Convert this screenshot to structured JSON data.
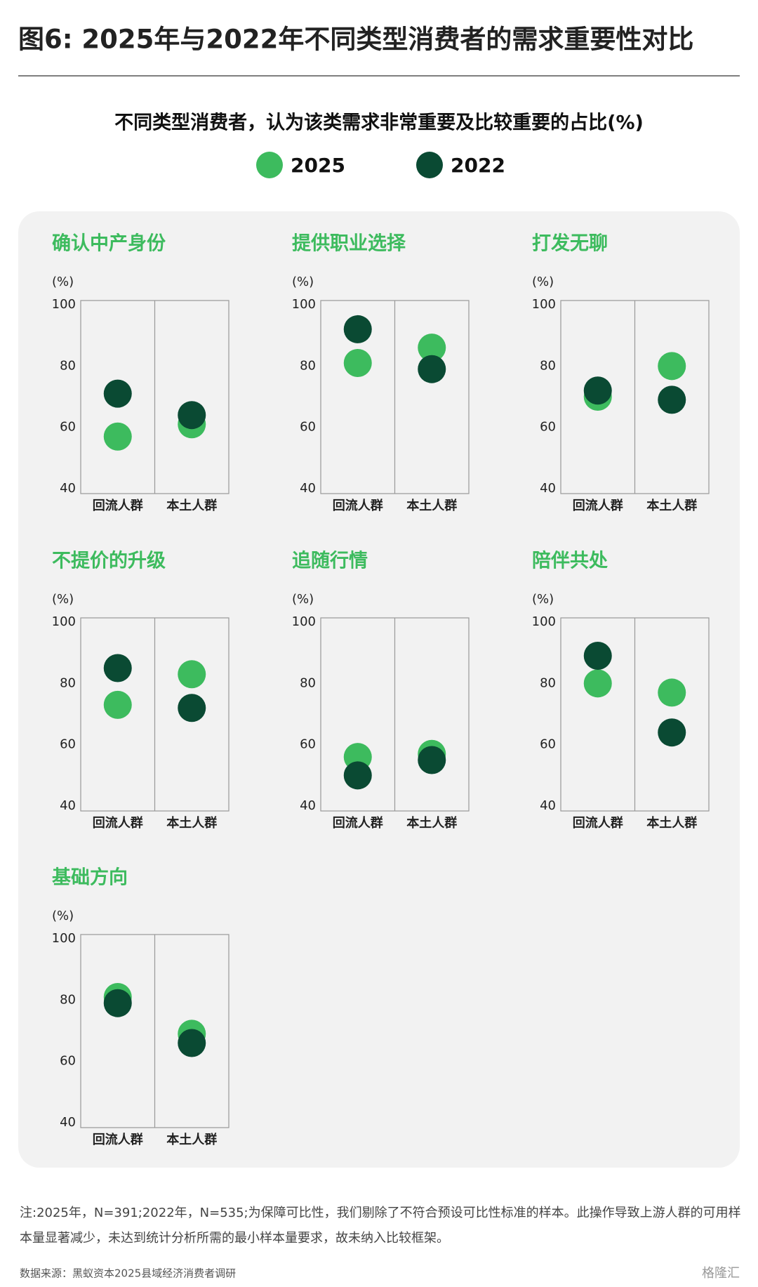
{
  "title": "图6: 2025年与2022年不同类型消费者的需求重要性对比",
  "subtitle": "不同类型消费者，认为该类需求非常重要及比较重要的占比(%)",
  "note": "注:2025年，N=391;2022年，N=535;为保障可比性，我们剔除了不符合预设可比性标准的样本。此操作导致上游人群的可用样本量显著减少，未达到统计分析所需的最小样本量要求，故未纳入比较框架。",
  "source": "数据来源：黑蚁资本2025县域经济消费者调研",
  "watermark": "格隆汇",
  "chart_data": [
    {
      "type": "dot",
      "title": "确认中产身份",
      "y_label": "(%)",
      "categories": [
        "回流人群",
        "本土人群"
      ],
      "series": [
        {
          "name": "2025",
          "color": "#3dbb5e",
          "values": [
            57,
            61
          ]
        },
        {
          "name": "2022",
          "color": "#0a4a33",
          "values": [
            71,
            64
          ]
        }
      ],
      "ylim": [
        40,
        100
      ],
      "yticks": [
        40,
        60,
        80,
        100
      ]
    },
    {
      "type": "dot",
      "title": "提供职业选择",
      "y_label": "(%)",
      "categories": [
        "回流人群",
        "本土人群"
      ],
      "series": [
        {
          "name": "2025",
          "color": "#3dbb5e",
          "values": [
            81,
            86
          ]
        },
        {
          "name": "2022",
          "color": "#0a4a33",
          "values": [
            92,
            79
          ]
        }
      ],
      "ylim": [
        40,
        100
      ],
      "yticks": [
        40,
        60,
        80,
        100
      ]
    },
    {
      "type": "dot",
      "title": "打发无聊",
      "y_label": "(%)",
      "categories": [
        "回流人群",
        "本土人群"
      ],
      "series": [
        {
          "name": "2025",
          "color": "#3dbb5e",
          "values": [
            70,
            80
          ]
        },
        {
          "name": "2022",
          "color": "#0a4a33",
          "values": [
            72,
            69
          ]
        }
      ],
      "ylim": [
        40,
        100
      ],
      "yticks": [
        40,
        60,
        80,
        100
      ]
    },
    {
      "type": "dot",
      "title": "不提价的升级",
      "y_label": "(%)",
      "categories": [
        "回流人群",
        "本土人群"
      ],
      "series": [
        {
          "name": "2025",
          "color": "#3dbb5e",
          "values": [
            73,
            83
          ]
        },
        {
          "name": "2022",
          "color": "#0a4a33",
          "values": [
            85,
            72
          ]
        }
      ],
      "ylim": [
        40,
        100
      ],
      "yticks": [
        40,
        60,
        80,
        100
      ]
    },
    {
      "type": "dot",
      "title": "追随行情",
      "y_label": "(%)",
      "categories": [
        "回流人群",
        "本土人群"
      ],
      "series": [
        {
          "name": "2025",
          "color": "#3dbb5e",
          "values": [
            56,
            57
          ]
        },
        {
          "name": "2022",
          "color": "#0a4a33",
          "values": [
            50,
            55
          ]
        }
      ],
      "ylim": [
        40,
        100
      ],
      "yticks": [
        40,
        60,
        80,
        100
      ]
    },
    {
      "type": "dot",
      "title": "陪伴共处",
      "y_label": "(%)",
      "categories": [
        "回流人群",
        "本土人群"
      ],
      "series": [
        {
          "name": "2025",
          "color": "#3dbb5e",
          "values": [
            80,
            77
          ]
        },
        {
          "name": "2022",
          "color": "#0a4a33",
          "values": [
            89,
            64
          ]
        }
      ],
      "ylim": [
        40,
        100
      ],
      "yticks": [
        40,
        60,
        80,
        100
      ]
    },
    {
      "type": "dot",
      "title": "基础方向",
      "y_label": "(%)",
      "categories": [
        "回流人群",
        "本土人群"
      ],
      "series": [
        {
          "name": "2025",
          "color": "#3dbb5e",
          "values": [
            81,
            69
          ]
        },
        {
          "name": "2022",
          "color": "#0a4a33",
          "values": [
            79,
            66
          ]
        }
      ],
      "ylim": [
        40,
        100
      ],
      "yticks": [
        40,
        60,
        80,
        100
      ]
    }
  ]
}
